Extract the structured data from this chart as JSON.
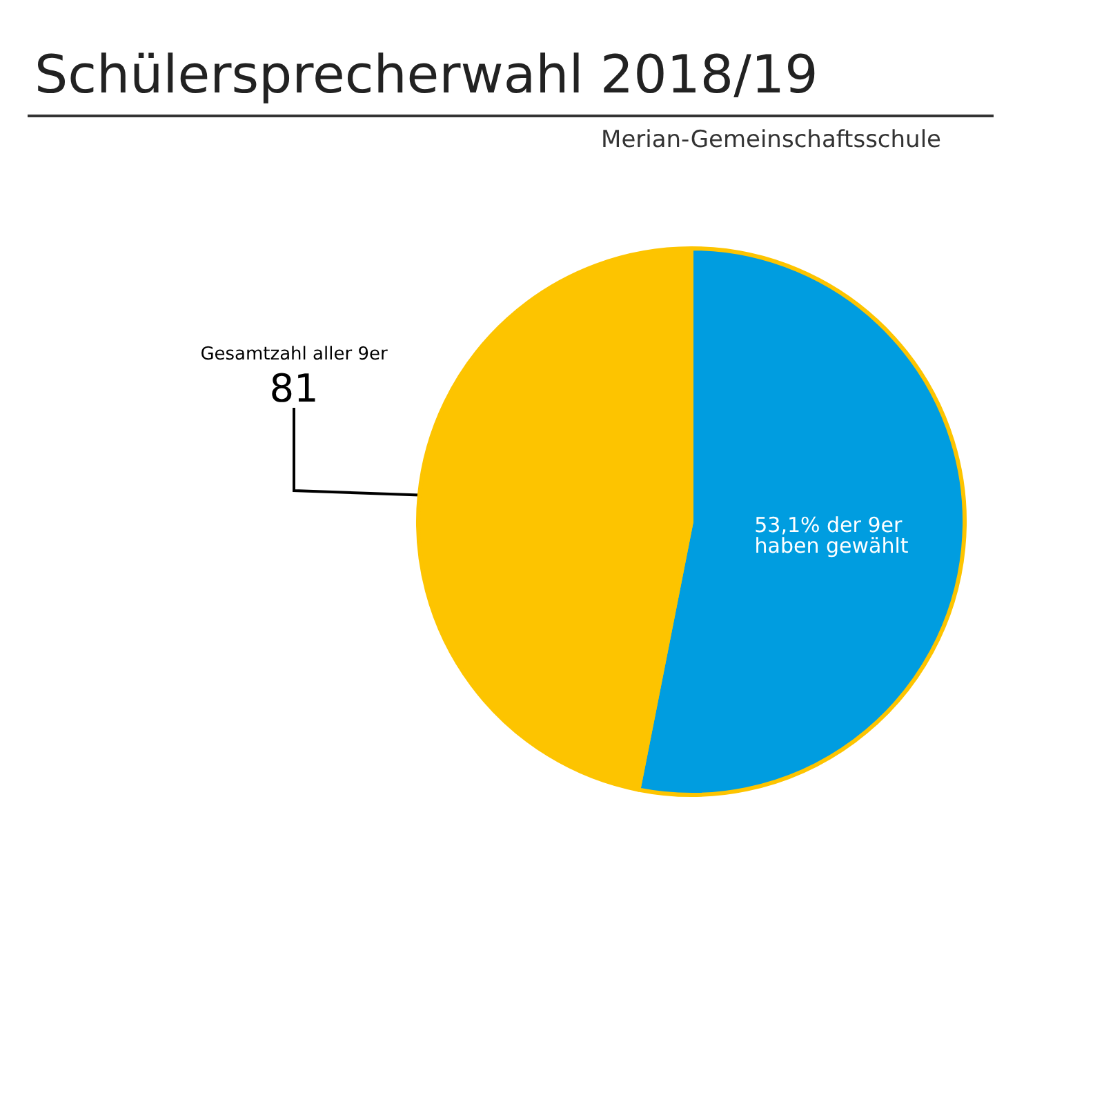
{
  "chart_data": {
    "type": "pie",
    "title": "Schülersprecherwahl 2018/19",
    "subtitle": "Merian-Gemeinschaftsschule",
    "categories": [
      "53,1% der 9er haben gewählt",
      "Gesamtzahl aller 9er"
    ],
    "values": [
      53.1,
      46.9
    ],
    "colors": [
      "#009de0",
      "#fdc400"
    ],
    "annotations": [
      "81"
    ],
    "legend": false
  }
}
